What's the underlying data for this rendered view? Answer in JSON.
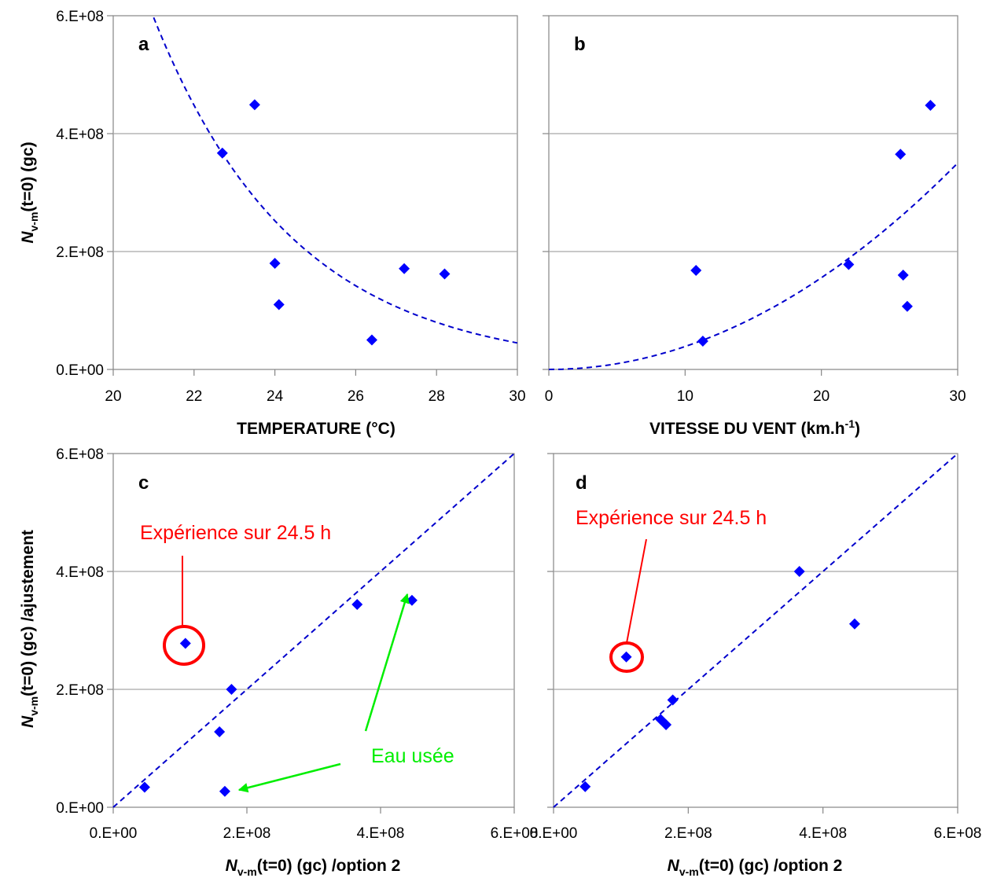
{
  "colors": {
    "marker": "#0000ff",
    "fit_line": "#0000cc",
    "gridline": "#a6a6a6",
    "axis": "#868686",
    "outlier_highlight": "#ff0000",
    "wastewater_arrow": "#00ee00"
  },
  "shared_labels": {
    "ylabel_top": {
      "main": "N",
      "sub": "v-m",
      "tail": "(t=0) (gc)"
    },
    "ylabel_bottom": {
      "main": "N",
      "sub": "v-m",
      "tail": "(t=0) (gc) /ajustement"
    }
  },
  "chart_data": [
    {
      "panel": "a",
      "type": "scatter",
      "xlabel": "TEMPERATURE (°C)",
      "xlim": [
        20,
        30
      ],
      "ylim": [
        0,
        600000000
      ],
      "x_ticks": [
        "20",
        "22",
        "24",
        "26",
        "28",
        "30"
      ],
      "y_ticks": [
        "0.E+00",
        "2.E+08",
        "4.E+08",
        "6.E+08"
      ],
      "grid": "horizontal",
      "points": [
        {
          "x": 22.7,
          "y": 367000000
        },
        {
          "x": 23.5,
          "y": 449000000
        },
        {
          "x": 24.0,
          "y": 180000000
        },
        {
          "x": 24.1,
          "y": 110000000
        },
        {
          "x": 26.4,
          "y": 50000000
        },
        {
          "x": 27.2,
          "y": 171000000
        },
        {
          "x": 28.2,
          "y": 162000000
        }
      ],
      "fit": {
        "style": "dashed",
        "model": "exponential",
        "x_range": [
          21.0,
          30.0
        ],
        "y_range": [
          597000000,
          45000000
        ]
      }
    },
    {
      "panel": "b",
      "type": "scatter",
      "xlabel": "VITESSE DU VENT (km.h",
      "xlabel_sup": "-1",
      "xlabel_tail": ")",
      "xlim": [
        0,
        30
      ],
      "ylim": [
        0,
        600000000
      ],
      "x_ticks": [
        "0",
        "10",
        "20",
        "30"
      ],
      "y_ticks": [],
      "grid": "horizontal",
      "points": [
        {
          "x": 10.8,
          "y": 168000000
        },
        {
          "x": 11.3,
          "y": 48000000
        },
        {
          "x": 22.0,
          "y": 178000000
        },
        {
          "x": 25.8,
          "y": 365000000
        },
        {
          "x": 26.0,
          "y": 160000000
        },
        {
          "x": 26.3,
          "y": 107000000
        },
        {
          "x": 28.0,
          "y": 448000000
        }
      ],
      "fit": {
        "style": "dashed",
        "model": "power",
        "x_range": [
          0,
          30
        ],
        "y_range": [
          0,
          350000000
        ]
      }
    },
    {
      "panel": "c",
      "type": "scatter",
      "xlabel": {
        "main": "N",
        "sub": "v-m",
        "tail": "(t=0) (gc) /option 2"
      },
      "xlim": [
        0,
        600000000
      ],
      "ylim": [
        0,
        600000000
      ],
      "x_ticks": [
        "0.E+00",
        "2.E+08",
        "4.E+08",
        "6.E+08"
      ],
      "y_ticks": [
        "0.E+00",
        "2.E+08",
        "4.E+08",
        "6.E+08"
      ],
      "grid": "horizontal",
      "points": [
        {
          "x": 47000000,
          "y": 34000000
        },
        {
          "x": 108000000,
          "y": 278000000
        },
        {
          "x": 159000000,
          "y": 128000000
        },
        {
          "x": 167000000,
          "y": 27000000
        },
        {
          "x": 177000000,
          "y": 200000000
        },
        {
          "x": 365000000,
          "y": 344000000
        },
        {
          "x": 447000000,
          "y": 351000000
        }
      ],
      "fit": {
        "style": "dashed",
        "model": "1:1 line",
        "x_range": [
          0,
          600000000
        ],
        "y_range": [
          0,
          600000000
        ]
      },
      "annotations": {
        "outlier_label": "Expérience sur 24.5 h",
        "wastewater_label": "Eau usée"
      }
    },
    {
      "panel": "d",
      "type": "scatter",
      "xlabel": {
        "main": "N",
        "sub": "v-m",
        "tail": "(t=0) (gc) /option 2"
      },
      "xlim": [
        0,
        600000000
      ],
      "ylim": [
        0,
        600000000
      ],
      "x_ticks": [
        "0.E+00",
        "2.E+08",
        "4.E+08",
        "6.E+08"
      ],
      "y_ticks": [],
      "grid": "horizontal",
      "points": [
        {
          "x": 47000000,
          "y": 35000000
        },
        {
          "x": 108000000,
          "y": 255000000
        },
        {
          "x": 159000000,
          "y": 149000000
        },
        {
          "x": 167000000,
          "y": 140000000
        },
        {
          "x": 177000000,
          "y": 182000000
        },
        {
          "x": 365000000,
          "y": 400000000
        },
        {
          "x": 447000000,
          "y": 311000000
        }
      ],
      "fit": {
        "style": "dashed",
        "model": "1:1 line",
        "x_range": [
          0,
          600000000
        ],
        "y_range": [
          0,
          600000000
        ]
      },
      "annotations": {
        "outlier_label": "Expérience sur 24.5 h"
      }
    }
  ]
}
